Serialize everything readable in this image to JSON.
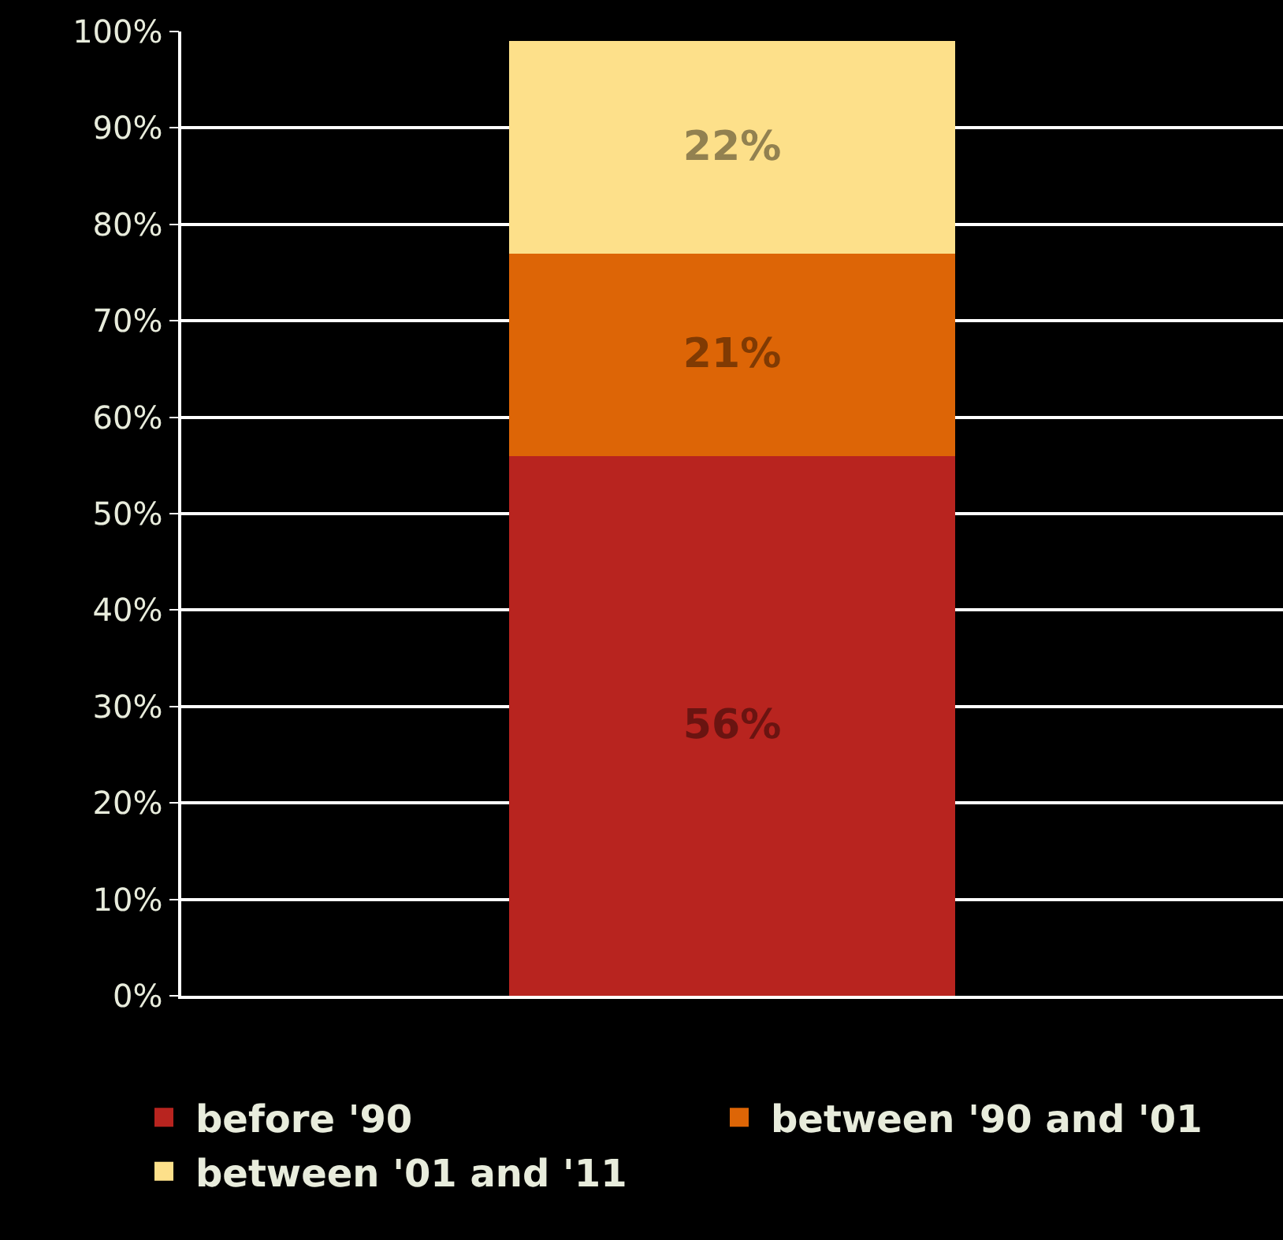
{
  "chart_data": {
    "type": "bar",
    "stacked": true,
    "categories": [
      null
    ],
    "series": [
      {
        "name": "before '90",
        "color": "#b8241f",
        "values": [
          56
        ]
      },
      {
        "name": "between '90 and '01",
        "color": "#dd6506",
        "values": [
          21
        ]
      },
      {
        "name": "between '01 and '11",
        "color": "#fde08a",
        "values": [
          22
        ]
      }
    ],
    "ylim": [
      0,
      100
    ],
    "yticks": [
      {
        "value": 0,
        "label": "0%"
      },
      {
        "value": 10,
        "label": "10%"
      },
      {
        "value": 20,
        "label": "20%"
      },
      {
        "value": 30,
        "label": "30%"
      },
      {
        "value": 40,
        "label": "40%"
      },
      {
        "value": 50,
        "label": "50%"
      },
      {
        "value": 60,
        "label": "60%"
      },
      {
        "value": 70,
        "label": "70%"
      },
      {
        "value": 80,
        "label": "80%"
      },
      {
        "value": 90,
        "label": "90%"
      },
      {
        "value": 100,
        "label": "100%"
      }
    ],
    "value_labels": [
      [
        "56%"
      ],
      [
        "21%"
      ],
      [
        "22%"
      ]
    ],
    "grid": "y",
    "legend": "bottom"
  }
}
